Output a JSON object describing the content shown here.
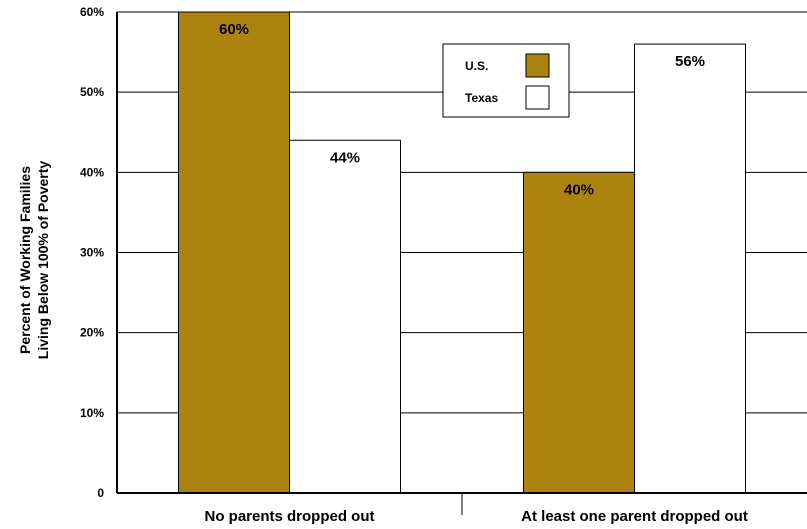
{
  "colors": {
    "us": "#ad8310",
    "texas": "#ffffff",
    "axis": "#000000"
  },
  "chart_data": {
    "type": "bar",
    "categories": [
      "No parents dropped out",
      "At least one parent dropped out"
    ],
    "series": [
      {
        "name": "U.S.",
        "values": [
          60,
          40
        ]
      },
      {
        "name": "Texas",
        "values": [
          44,
          56
        ]
      }
    ],
    "data_labels": [
      [
        "60%",
        "40%"
      ],
      [
        "44%",
        "56%"
      ]
    ],
    "ylabel": [
      "Percent of Working Families",
      "Living Below 100% of Poverty"
    ],
    "yticks": [
      0,
      10,
      20,
      30,
      40,
      50,
      60
    ],
    "ytick_labels": [
      "0",
      "10%",
      "20%",
      "30%",
      "40%",
      "50%",
      "60%"
    ],
    "ylim": [
      0,
      60
    ],
    "grid": true,
    "legend_position": "top-center"
  }
}
